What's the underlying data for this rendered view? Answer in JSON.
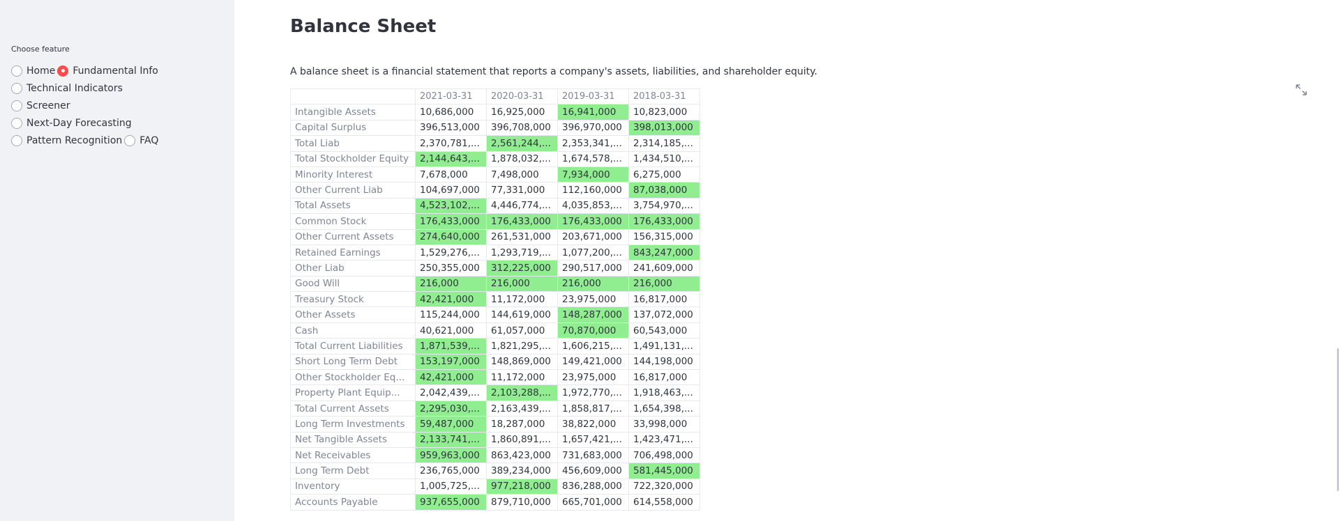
{
  "sidebar": {
    "label": "Choose feature",
    "options": [
      {
        "label": "Home",
        "checked": false
      },
      {
        "label": "Fundamental Info",
        "checked": true
      },
      {
        "label": "Technical Indicators",
        "checked": false
      },
      {
        "label": "Screener",
        "checked": false
      },
      {
        "label": "Next-Day Forecasting",
        "checked": false
      },
      {
        "label": "Pattern Recognition",
        "checked": false
      },
      {
        "label": "FAQ",
        "checked": false
      }
    ]
  },
  "main": {
    "title": "Balance Sheet",
    "description": "A balance sheet is a financial statement that reports a company's assets, liabilities, and shareholder equity."
  },
  "colors": {
    "highlight": "#90ee90",
    "accent": "#ff4b4b",
    "sidebar_bg": "#f0f2f6"
  },
  "table": {
    "columns": [
      "2021-03-31",
      "2020-03-31",
      "2019-03-31",
      "2018-03-31"
    ],
    "rows": [
      {
        "label": "Intangible Assets",
        "values": [
          "10,686,000",
          "16,925,000",
          "16,941,000",
          "10,823,000"
        ],
        "highlight": [
          false,
          false,
          true,
          false
        ]
      },
      {
        "label": "Capital Surplus",
        "values": [
          "396,513,000",
          "396,708,000",
          "396,970,000",
          "398,013,000"
        ],
        "highlight": [
          false,
          false,
          false,
          true
        ]
      },
      {
        "label": "Total Liab",
        "values": [
          "2,370,781,...",
          "2,561,244,...",
          "2,353,341,...",
          "2,314,185,..."
        ],
        "highlight": [
          false,
          true,
          false,
          false
        ]
      },
      {
        "label": "Total Stockholder Equity",
        "values": [
          "2,144,643,...",
          "1,878,032,...",
          "1,674,578,...",
          "1,434,510,..."
        ],
        "highlight": [
          true,
          false,
          false,
          false
        ]
      },
      {
        "label": "Minority Interest",
        "values": [
          "7,678,000",
          "7,498,000",
          "7,934,000",
          "6,275,000"
        ],
        "highlight": [
          false,
          false,
          true,
          false
        ]
      },
      {
        "label": "Other Current Liab",
        "values": [
          "104,697,000",
          "77,331,000",
          "112,160,000",
          "87,038,000"
        ],
        "highlight": [
          false,
          false,
          false,
          true
        ]
      },
      {
        "label": "Total Assets",
        "values": [
          "4,523,102,...",
          "4,446,774,...",
          "4,035,853,...",
          "3,754,970,..."
        ],
        "highlight": [
          true,
          false,
          false,
          false
        ]
      },
      {
        "label": "Common Stock",
        "values": [
          "176,433,000",
          "176,433,000",
          "176,433,000",
          "176,433,000"
        ],
        "highlight": [
          true,
          true,
          true,
          true
        ]
      },
      {
        "label": "Other Current Assets",
        "values": [
          "274,640,000",
          "261,531,000",
          "203,671,000",
          "156,315,000"
        ],
        "highlight": [
          true,
          false,
          false,
          false
        ]
      },
      {
        "label": "Retained Earnings",
        "values": [
          "1,529,276,...",
          "1,293,719,...",
          "1,077,200,...",
          "843,247,000"
        ],
        "highlight": [
          false,
          false,
          false,
          true
        ]
      },
      {
        "label": "Other Liab",
        "values": [
          "250,355,000",
          "312,225,000",
          "290,517,000",
          "241,609,000"
        ],
        "highlight": [
          false,
          true,
          false,
          false
        ]
      },
      {
        "label": "Good Will",
        "values": [
          "216,000",
          "216,000",
          "216,000",
          "216,000"
        ],
        "highlight": [
          true,
          true,
          true,
          true
        ]
      },
      {
        "label": "Treasury Stock",
        "values": [
          "42,421,000",
          "11,172,000",
          "23,975,000",
          "16,817,000"
        ],
        "highlight": [
          true,
          false,
          false,
          false
        ]
      },
      {
        "label": "Other Assets",
        "values": [
          "115,244,000",
          "144,619,000",
          "148,287,000",
          "137,072,000"
        ],
        "highlight": [
          false,
          false,
          true,
          false
        ]
      },
      {
        "label": "Cash",
        "values": [
          "40,621,000",
          "61,057,000",
          "70,870,000",
          "60,543,000"
        ],
        "highlight": [
          false,
          false,
          true,
          false
        ]
      },
      {
        "label": "Total Current Liabilities",
        "values": [
          "1,871,539,...",
          "1,821,295,...",
          "1,606,215,...",
          "1,491,131,..."
        ],
        "highlight": [
          true,
          false,
          false,
          false
        ]
      },
      {
        "label": "Short Long Term Debt",
        "values": [
          "153,197,000",
          "148,869,000",
          "149,421,000",
          "144,198,000"
        ],
        "highlight": [
          true,
          false,
          false,
          false
        ]
      },
      {
        "label": "Other Stockholder Eq...",
        "values": [
          "42,421,000",
          "11,172,000",
          "23,975,000",
          "16,817,000"
        ],
        "highlight": [
          true,
          false,
          false,
          false
        ]
      },
      {
        "label": "Property Plant Equip...",
        "values": [
          "2,042,439,...",
          "2,103,288,...",
          "1,972,770,...",
          "1,918,463,..."
        ],
        "highlight": [
          false,
          true,
          false,
          false
        ]
      },
      {
        "label": "Total Current Assets",
        "values": [
          "2,295,030,...",
          "2,163,439,...",
          "1,858,817,...",
          "1,654,398,..."
        ],
        "highlight": [
          true,
          false,
          false,
          false
        ]
      },
      {
        "label": "Long Term Investments",
        "values": [
          "59,487,000",
          "18,287,000",
          "38,822,000",
          "33,998,000"
        ],
        "highlight": [
          true,
          false,
          false,
          false
        ]
      },
      {
        "label": "Net Tangible Assets",
        "values": [
          "2,133,741,...",
          "1,860,891,...",
          "1,657,421,...",
          "1,423,471,..."
        ],
        "highlight": [
          true,
          false,
          false,
          false
        ]
      },
      {
        "label": "Net Receivables",
        "values": [
          "959,963,000",
          "863,423,000",
          "731,683,000",
          "706,498,000"
        ],
        "highlight": [
          true,
          false,
          false,
          false
        ]
      },
      {
        "label": "Long Term Debt",
        "values": [
          "236,765,000",
          "389,234,000",
          "456,609,000",
          "581,445,000"
        ],
        "highlight": [
          false,
          false,
          false,
          true
        ]
      },
      {
        "label": "Inventory",
        "values": [
          "1,005,725,...",
          "977,218,000",
          "836,288,000",
          "722,320,000"
        ],
        "highlight": [
          false,
          true,
          false,
          false
        ]
      },
      {
        "label": "Accounts Payable",
        "values": [
          "937,655,000",
          "879,710,000",
          "665,701,000",
          "614,558,000"
        ],
        "highlight": [
          true,
          false,
          false,
          false
        ]
      }
    ]
  }
}
